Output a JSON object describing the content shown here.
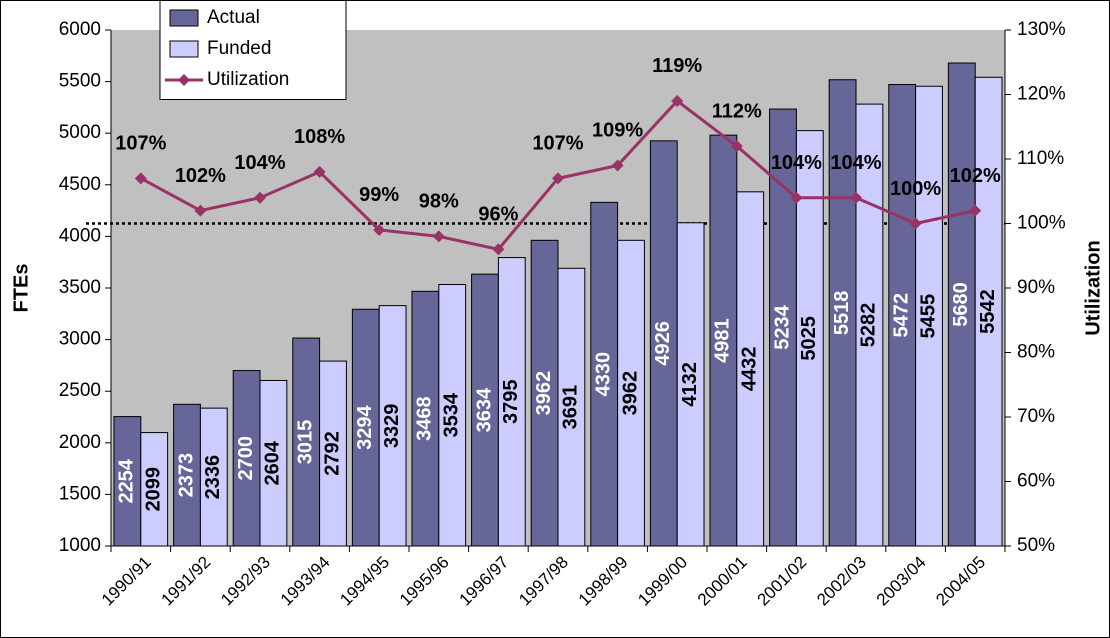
{
  "chart_data": {
    "type": "bar",
    "categories": [
      "1990/91",
      "1991/92",
      "1992/93",
      "1993/94",
      "1994/95",
      "1995/96",
      "1996/97",
      "1997/98",
      "1998/99",
      "1999/00",
      "2000/01",
      "2001/02",
      "2002/03",
      "2003/04",
      "2004/05"
    ],
    "series": [
      {
        "name": "Actual",
        "color": "#666699",
        "values": [
          2254,
          2373,
          2700,
          3015,
          3294,
          3468,
          3634,
          3962,
          4330,
          4926,
          4981,
          5234,
          5518,
          5472,
          5680
        ]
      },
      {
        "name": "Funded",
        "color": "#ccccff",
        "values": [
          2099,
          2336,
          2604,
          2792,
          3329,
          3534,
          3795,
          3691,
          3962,
          4132,
          4432,
          5025,
          5282,
          5455,
          5542
        ]
      },
      {
        "name": "Utilization",
        "type": "line",
        "axis": "y2",
        "color": "#993366",
        "values": [
          107,
          102,
          104,
          108,
          99,
          98,
          96,
          107,
          109,
          119,
          112,
          104,
          104,
          100,
          102
        ],
        "value_labels": [
          "107%",
          "102%",
          "104%",
          "108%",
          "99%",
          "98%",
          "96%",
          "107%",
          "109%",
          "119%",
          "112%",
          "104%",
          "104%",
          "100%",
          "102%"
        ]
      }
    ],
    "ylabel": "FTEs",
    "y2label": "Utilization",
    "ylim": [
      1000,
      6000
    ],
    "yticks": [
      1000,
      1500,
      2000,
      2500,
      3000,
      3500,
      4000,
      4500,
      5000,
      5500,
      6000
    ],
    "y2lim": [
      50,
      130
    ],
    "y2ticks": [
      {
        "value": 50,
        "label": "50%"
      },
      {
        "value": 60,
        "label": "60%"
      },
      {
        "value": 70,
        "label": "70%"
      },
      {
        "value": 80,
        "label": "80%"
      },
      {
        "value": 90,
        "label": "90%"
      },
      {
        "value": 100,
        "label": "100%"
      },
      {
        "value": 110,
        "label": "110%"
      },
      {
        "value": 120,
        "label": "120%"
      },
      {
        "value": 130,
        "label": "130%"
      }
    ],
    "reference_line": {
      "axis": "y2",
      "value": 100
    },
    "legend": "top-left"
  }
}
